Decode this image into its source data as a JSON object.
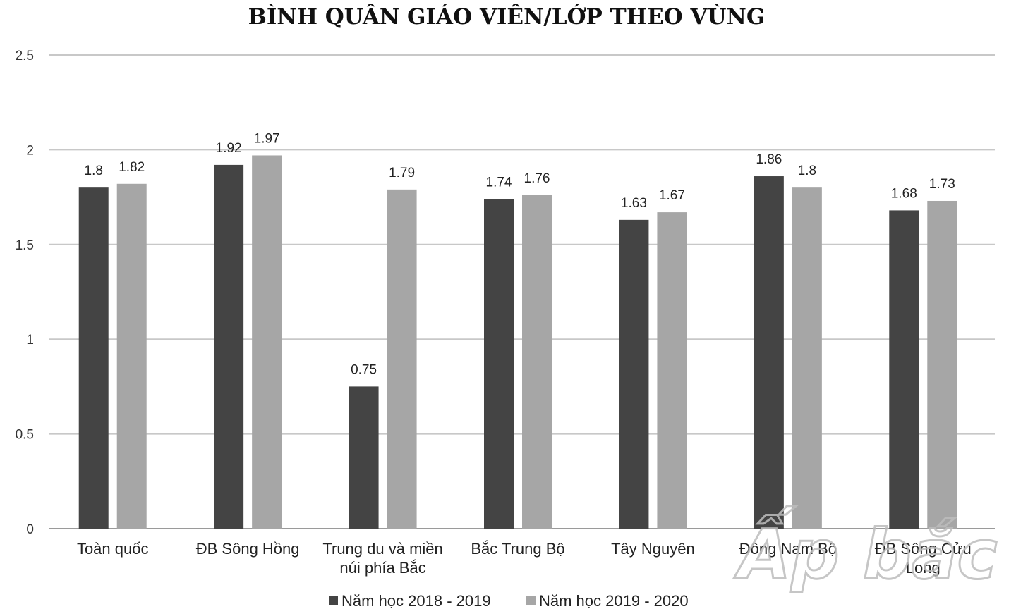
{
  "chart_data": {
    "type": "bar",
    "title": "BÌNH QUÂN GIÁO VIÊN/LỚP THEO VÙNG",
    "xlabel": "",
    "ylabel": "",
    "ylim": [
      0,
      2.5
    ],
    "yticks": [
      "0",
      "0.5",
      "1",
      "1.5",
      "2",
      "2.5"
    ],
    "grid": true,
    "legend_position": "bottom",
    "categories": [
      [
        "Toàn quốc"
      ],
      [
        "ĐB Sông Hồng"
      ],
      [
        "Trung du và miền",
        "núi phía Bắc"
      ],
      [
        "Bắc Trung Bộ"
      ],
      [
        "Tây Nguyên"
      ],
      [
        "Đông Nam Bộ"
      ],
      [
        "ĐB Sông Cửu",
        "Long"
      ]
    ],
    "series": [
      {
        "name": "Năm học 2018 - 2019",
        "color": "#444444",
        "values": [
          1.8,
          1.92,
          0.75,
          1.74,
          1.63,
          1.86,
          1.68
        ],
        "labels": [
          "1.8",
          "1.92",
          "0.75",
          "1.74",
          "1.63",
          "1.86",
          "1.68"
        ]
      },
      {
        "name": "Năm học 2019 - 2020",
        "color": "#a6a6a6",
        "values": [
          1.82,
          1.97,
          1.79,
          1.76,
          1.67,
          1.8,
          1.73
        ],
        "labels": [
          "1.82",
          "1.97",
          "1.79",
          "1.76",
          "1.67",
          "1.8",
          "1.73"
        ]
      }
    ]
  },
  "watermark": {
    "text": "Ấp bắc",
    "icon": "ap-bac-logo-icon"
  }
}
